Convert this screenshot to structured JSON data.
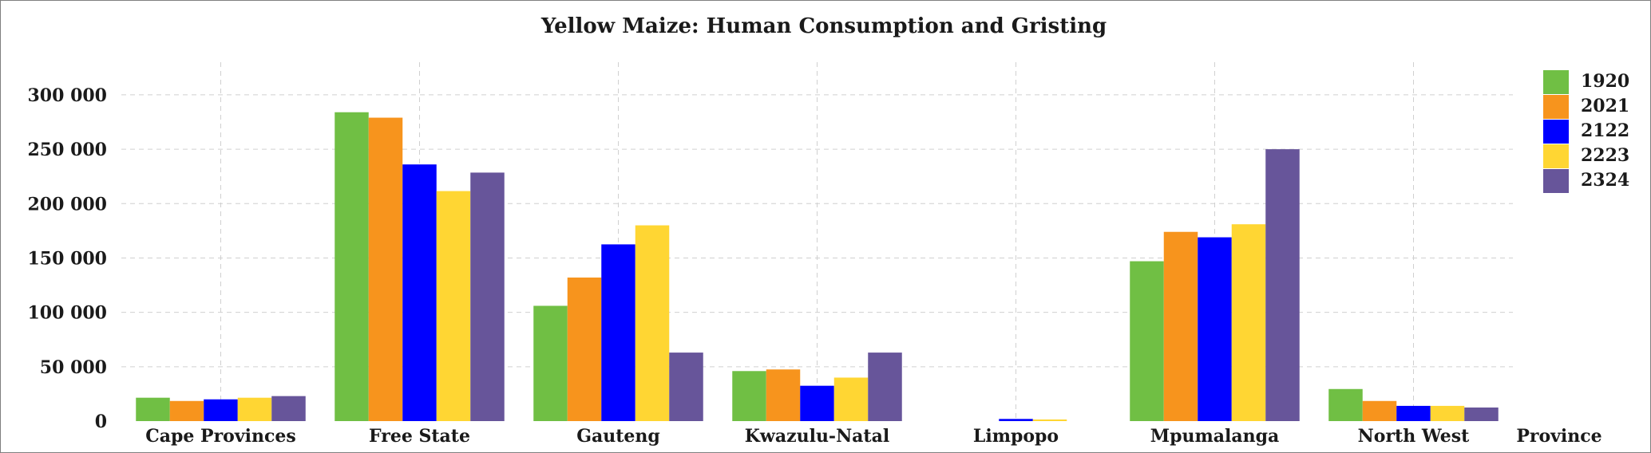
{
  "chart_data": {
    "type": "bar",
    "title": "Yellow Maize: Human Consumption and Gristing",
    "xlabel": "Province",
    "ylabel": "",
    "ylim": [
      0,
      330000
    ],
    "yticks": [
      0,
      50000,
      100000,
      150000,
      200000,
      250000,
      300000
    ],
    "ytick_labels": [
      "0",
      "50 000",
      "100 000",
      "150 000",
      "200 000",
      "250 000",
      "300 000"
    ],
    "grid": true,
    "legend_position": "top-right",
    "categories": [
      "Cape Provinces",
      "Free State",
      "Gauteng",
      "Kwazulu-Natal",
      "Limpopo",
      "Mpumalanga",
      "North West"
    ],
    "series": [
      {
        "name": "1920",
        "color": "#70bf44",
        "values": [
          21500,
          284000,
          106000,
          46000,
          0,
          147000,
          29500
        ]
      },
      {
        "name": "2021",
        "color": "#f7941d",
        "values": [
          18500,
          279000,
          132000,
          47500,
          0,
          174000,
          18500
        ]
      },
      {
        "name": "2122",
        "color": "#0000ff",
        "values": [
          20000,
          236000,
          162500,
          32500,
          2000,
          169000,
          14000
        ]
      },
      {
        "name": "2223",
        "color": "#ffd633",
        "values": [
          21500,
          211500,
          180000,
          40000,
          1500,
          181000,
          14000
        ]
      },
      {
        "name": "2324",
        "color": "#67559a",
        "values": [
          23000,
          228500,
          63000,
          63000,
          0,
          250000,
          12500
        ]
      }
    ]
  }
}
